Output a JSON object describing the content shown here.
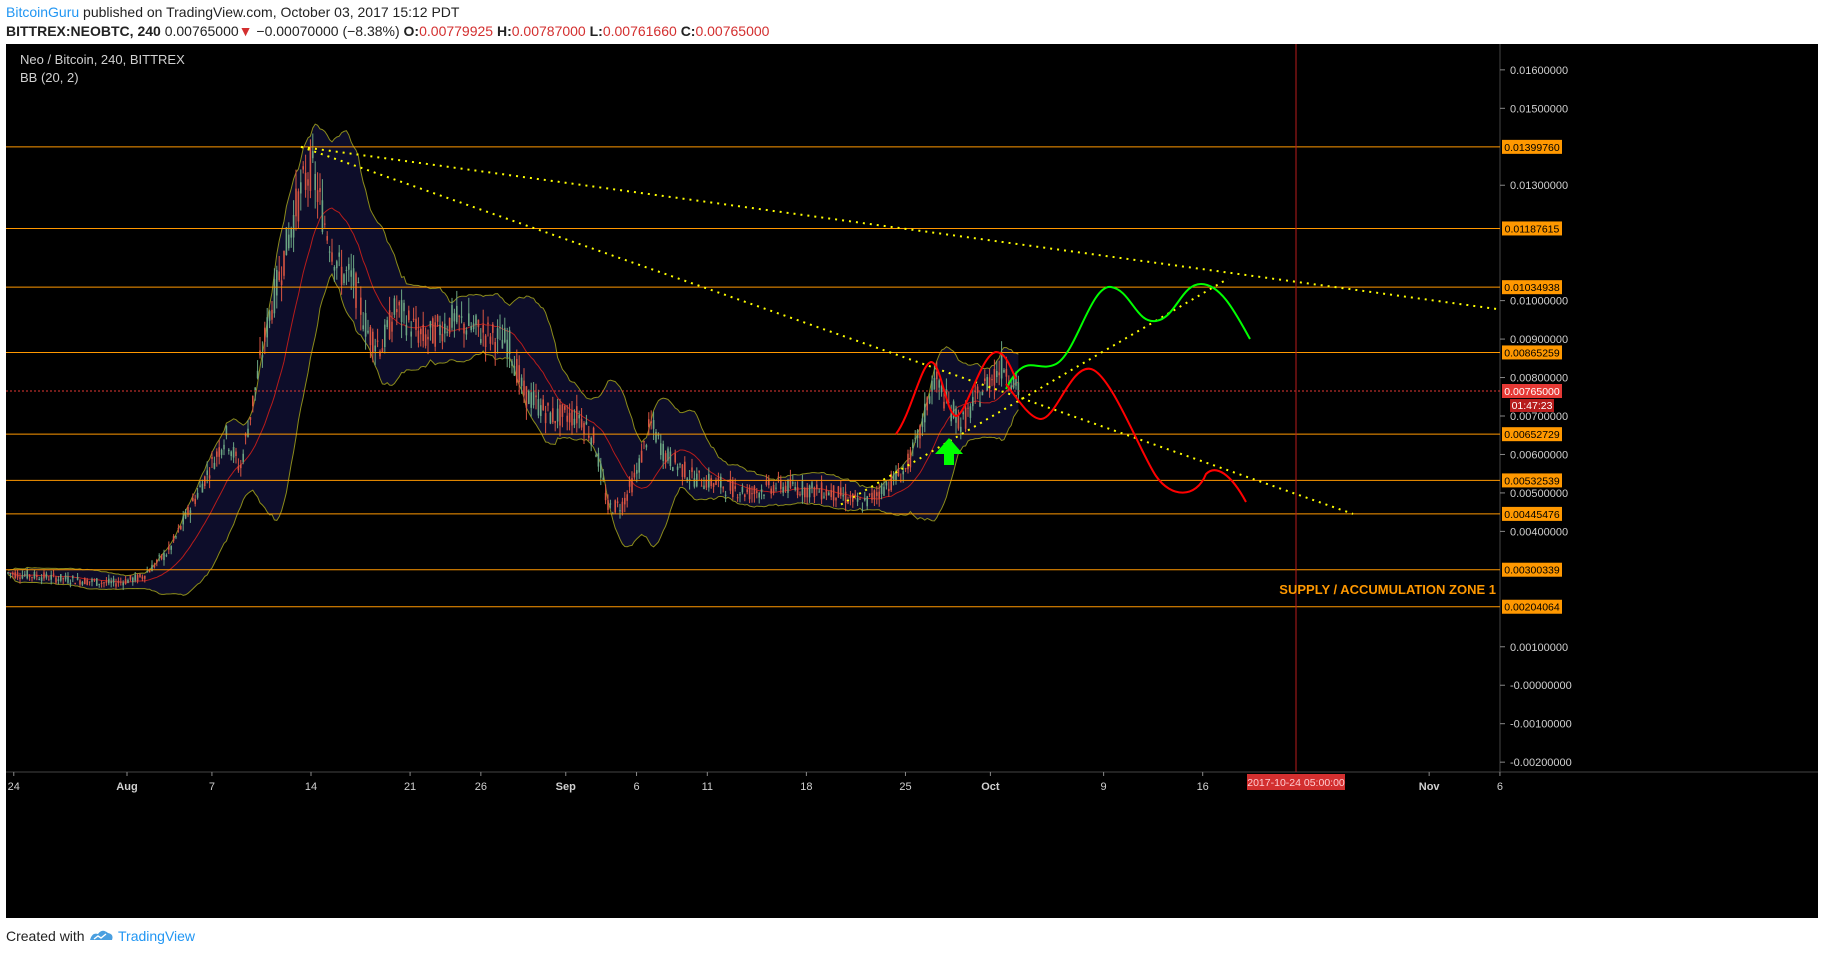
{
  "header": {
    "author": "BitcoinGuru",
    "published_text": "published on TradingView.com, October 03, 2017 15:12 PDT",
    "symbol": "BITTREX:NEOBTC, 240",
    "last": "0.00765000",
    "arrow": "▼",
    "change": "−0.00070000 (−8.38%)",
    "o_label": "O:",
    "o_value": "0.00779925",
    "h_label": "H:",
    "h_value": "0.00787000",
    "l_label": "L:",
    "l_value": "0.00761660",
    "c_label": "C:",
    "c_value": "0.00765000"
  },
  "legend": {
    "title": "Neo / Bitcoin, 240, BITTREX",
    "indicator": "BB (20, 2)"
  },
  "footer": {
    "created_with": "Created with",
    "brand": "TradingView"
  },
  "colors": {
    "background": "#000000",
    "level_line": "#ff9800",
    "bull_candle": "#6ba583",
    "bear_candle": "#d75442",
    "bb_band": "#8b8b1a",
    "bb_fill": "#0d0d2a",
    "bb_basis": "#b71c1c",
    "trendline": "#ffff00",
    "projection_green": "#00ff00",
    "projection_red": "#ff0000",
    "marker_arrow": "#00ff00",
    "zone_text": "#ff9800",
    "current_price_bg": "#e53935"
  },
  "chart_data": {
    "type": "candlestick",
    "title": "Neo / Bitcoin, 240, BITTREX",
    "indicator": "BB (20, 2)",
    "y_axis_ticks": [
      "0.01600000",
      "0.01500000",
      "0.01300000",
      "0.01000000",
      "0.00900000",
      "0.00800000",
      "0.00700000",
      "0.00600000",
      "0.00500000",
      "0.00400000",
      "0.00100000",
      "-0.00000000",
      "-0.00100000",
      "-0.00200000"
    ],
    "y_range": [
      -0.0023,
      0.0172
    ],
    "x_axis_ticks": [
      "24",
      "Aug",
      "7",
      "14",
      "21",
      "26",
      "Sep",
      "6",
      "11",
      "18",
      "25",
      "Oct",
      "9",
      "16",
      "Nov",
      "6"
    ],
    "horizontal_levels": [
      "0.01399760",
      "0.01187615",
      "0.01034938",
      "0.00865259",
      "0.00652729",
      "0.00532539",
      "0.00445476",
      "0.00300339",
      "0.00204064"
    ],
    "current_price": "0.00765000",
    "countdown": "01:47:23",
    "time_marker": "2017-10-24 05:00:00",
    "zone_label": "SUPPLY / ACCUMULATION ZONE 1",
    "price_path": [
      {
        "date": "Jul 20",
        "close": 0.00305
      },
      {
        "date": "Jul 24",
        "close": 0.0029
      },
      {
        "date": "Jul 28",
        "close": 0.00275
      },
      {
        "date": "Jul 31",
        "close": 0.00265
      },
      {
        "date": "Aug 2",
        "close": 0.0028
      },
      {
        "date": "Aug 4",
        "close": 0.0035
      },
      {
        "date": "Aug 6",
        "close": 0.005
      },
      {
        "date": "Aug 8",
        "close": 0.0065
      },
      {
        "date": "Aug 9",
        "close": 0.0056
      },
      {
        "date": "Aug 10",
        "close": 0.0076
      },
      {
        "date": "Aug 11",
        "close": 0.0095
      },
      {
        "date": "Aug 12",
        "close": 0.011
      },
      {
        "date": "Aug 13",
        "close": 0.0125
      },
      {
        "date": "Aug 14",
        "close": 0.0135
      },
      {
        "date": "Aug 15",
        "close": 0.012
      },
      {
        "date": "Aug 16",
        "close": 0.0108
      },
      {
        "date": "Aug 17",
        "close": 0.0105
      },
      {
        "date": "Aug 18",
        "close": 0.0092
      },
      {
        "date": "Aug 19",
        "close": 0.0088
      },
      {
        "date": "Aug 20",
        "close": 0.0098
      },
      {
        "date": "Aug 22",
        "close": 0.009
      },
      {
        "date": "Aug 24",
        "close": 0.0095
      },
      {
        "date": "Aug 26",
        "close": 0.0092
      },
      {
        "date": "Aug 28",
        "close": 0.0089
      },
      {
        "date": "Aug 29",
        "close": 0.0076
      },
      {
        "date": "Aug 31",
        "close": 0.007
      },
      {
        "date": "Sep 2",
        "close": 0.007
      },
      {
        "date": "Sep 3",
        "close": 0.0064
      },
      {
        "date": "Sep 4",
        "close": 0.0046
      },
      {
        "date": "Sep 5",
        "close": 0.0047
      },
      {
        "date": "Sep 6",
        "close": 0.0055
      },
      {
        "date": "Sep 7",
        "close": 0.0068
      },
      {
        "date": "Sep 8",
        "close": 0.006
      },
      {
        "date": "Sep 10",
        "close": 0.0054
      },
      {
        "date": "Sep 12",
        "close": 0.0052
      },
      {
        "date": "Sep 14",
        "close": 0.005
      },
      {
        "date": "Sep 16",
        "close": 0.0052
      },
      {
        "date": "Sep 18",
        "close": 0.0051
      },
      {
        "date": "Sep 20",
        "close": 0.005
      },
      {
        "date": "Sep 22",
        "close": 0.0047
      },
      {
        "date": "Sep 24",
        "close": 0.0053
      },
      {
        "date": "Sep 25",
        "close": 0.0056
      },
      {
        "date": "Sep 26",
        "close": 0.0065
      },
      {
        "date": "Sep 27",
        "close": 0.008
      },
      {
        "date": "Sep 28",
        "close": 0.0073
      },
      {
        "date": "Sep 29",
        "close": 0.0068
      },
      {
        "date": "Sep 30",
        "close": 0.0074
      },
      {
        "date": "Oct 1",
        "close": 0.008
      },
      {
        "date": "Oct 2",
        "close": 0.00835
      },
      {
        "date": "Oct 3",
        "close": 0.00765
      }
    ]
  }
}
